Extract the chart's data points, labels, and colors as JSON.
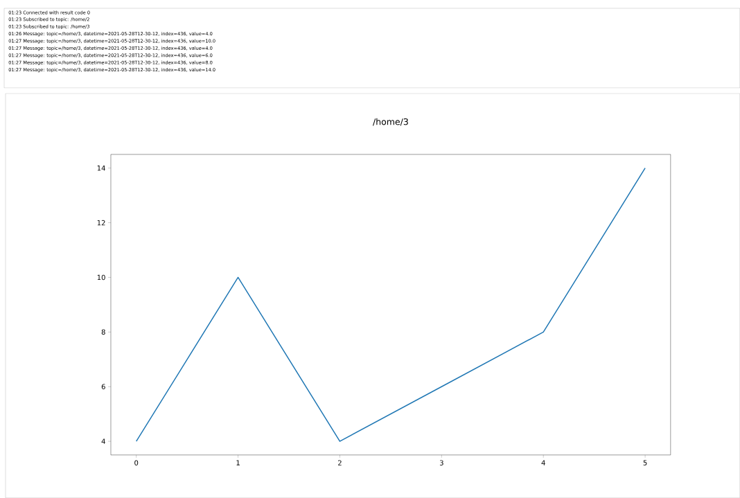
{
  "chart_data": {
    "type": "line",
    "title": "/home/3",
    "annotations": [
      "01:23 Connected with result code 0",
      "01:23 Subscribed to topic: /home/2",
      "01:23 Subscribed to topic: /home/3",
      "01:26 Message: topic=/home/3, datetime=2021-05-28T12-30-12, index=436, value=4.0",
      "01:27 Message: topic=/home/3, datetime=2021-05-28T12-30-12, index=436, value=10.0",
      "01:27 Message: topic=/home/3, datetime=2021-05-28T12-30-12, index=436, value=4.0",
      "01:27 Message: topic=/home/3, datetime=2021-05-28T12-30-12, index=436, value=6.0",
      "01:27 Message: topic=/home/3, datetime=2021-05-28T12-30-12, index=436, value=8.0",
      "01:27 Message: topic=/home/3, datetime=2021-05-28T12-30-12, index=436, value=14.0"
    ],
    "x": [
      0,
      1,
      2,
      3,
      4,
      5
    ],
    "series": [
      {
        "color": "#1f77b4",
        "values": [
          4,
          10,
          4,
          6,
          8,
          14
        ]
      }
    ],
    "xlim": [
      -0.25,
      5.25
    ],
    "xticks": [
      0,
      1,
      2,
      3,
      4,
      5
    ],
    "ylim": [
      3.5,
      14.5
    ],
    "yticks": [
      4,
      6,
      8,
      10,
      12,
      14
    ],
    "grid": false,
    "marker": "none",
    "line_style": "solid"
  }
}
